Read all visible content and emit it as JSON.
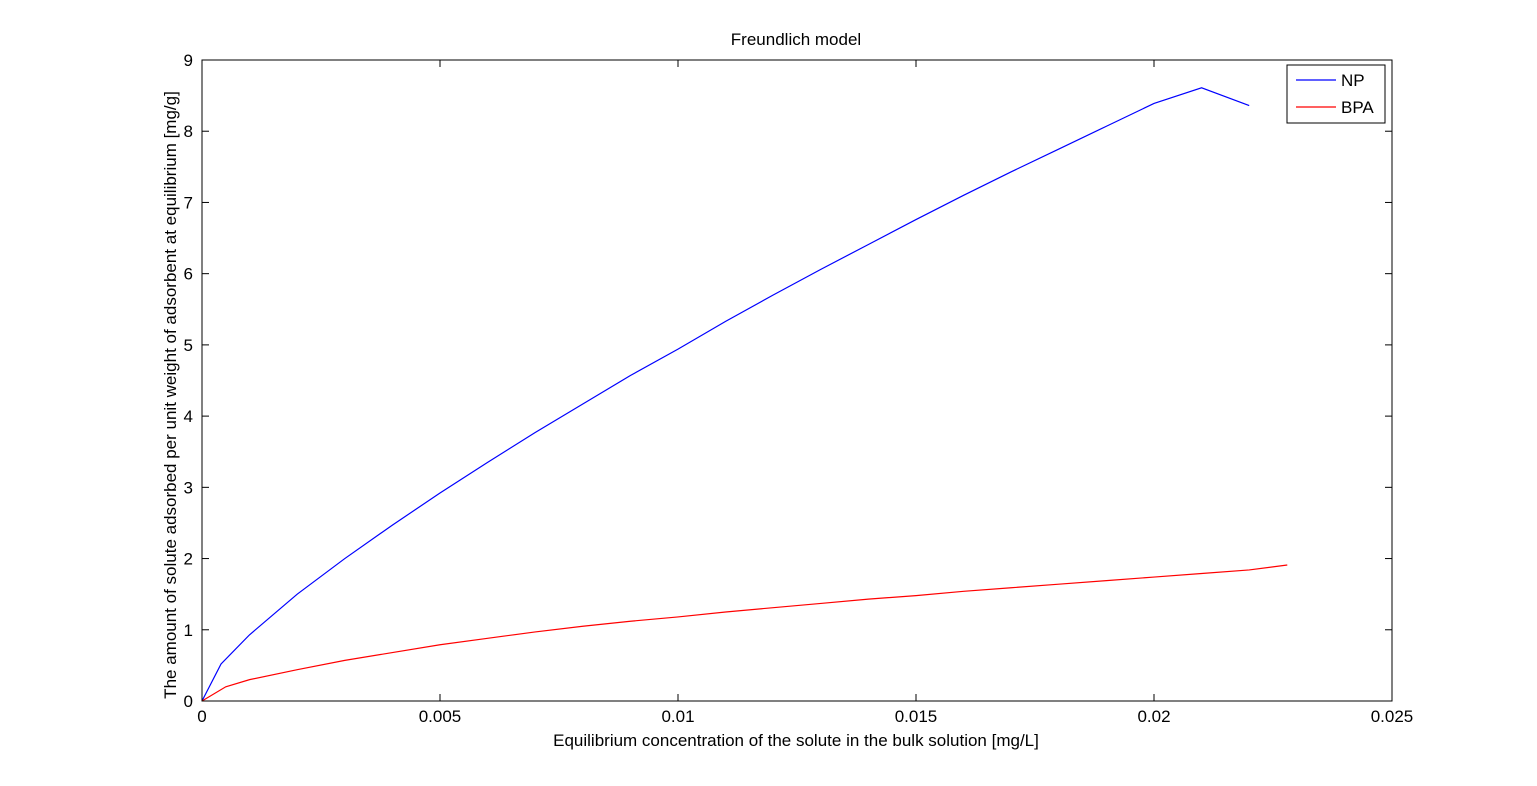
{
  "chart_data": {
    "type": "line",
    "title": "Freundlich model",
    "xlabel": "Equilibrium concentration of the solute in the bulk solution [mg/L]",
    "ylabel": "The amount of solute adsorbed per unit weight of adsorbent at equilibrium [mg/g]",
    "xlim": [
      0,
      0.025
    ],
    "ylim": [
      0,
      9
    ],
    "xticks": [
      0,
      0.005,
      0.01,
      0.015,
      0.02,
      0.025
    ],
    "xtick_labels": [
      "0",
      "0.005",
      "0.01",
      "0.015",
      "0.02",
      "0.025"
    ],
    "yticks": [
      0,
      1,
      2,
      3,
      4,
      5,
      6,
      7,
      8,
      9
    ],
    "ytick_labels": [
      "0",
      "1",
      "2",
      "3",
      "4",
      "5",
      "6",
      "7",
      "8",
      "9"
    ],
    "grid": false,
    "legend_position": "top-right",
    "series": [
      {
        "name": "NP",
        "color": "#0000ff",
        "points": [
          [
            0,
            0
          ],
          [
            0.0004,
            0.52
          ],
          [
            0.001,
            0.93
          ],
          [
            0.002,
            1.5
          ],
          [
            0.003,
            2.0
          ],
          [
            0.004,
            2.47
          ],
          [
            0.005,
            2.92
          ],
          [
            0.006,
            3.35
          ],
          [
            0.007,
            3.77
          ],
          [
            0.008,
            4.17
          ],
          [
            0.009,
            4.57
          ],
          [
            0.01,
            4.94
          ],
          [
            0.011,
            5.33
          ],
          [
            0.012,
            5.7
          ],
          [
            0.013,
            6.06
          ],
          [
            0.014,
            6.41
          ],
          [
            0.015,
            6.76
          ],
          [
            0.016,
            7.1
          ],
          [
            0.017,
            7.43
          ],
          [
            0.018,
            7.75
          ],
          [
            0.019,
            8.07
          ],
          [
            0.02,
            8.39
          ],
          [
            0.021,
            8.61
          ],
          [
            0.022,
            8.36
          ]
        ]
      },
      {
        "name": "BPA",
        "color": "#ff0000",
        "points": [
          [
            0,
            0
          ],
          [
            0.0005,
            0.2
          ],
          [
            0.001,
            0.3
          ],
          [
            0.002,
            0.44
          ],
          [
            0.003,
            0.57
          ],
          [
            0.004,
            0.68
          ],
          [
            0.005,
            0.79
          ],
          [
            0.006,
            0.88
          ],
          [
            0.007,
            0.97
          ],
          [
            0.008,
            1.05
          ],
          [
            0.009,
            1.12
          ],
          [
            0.01,
            1.18
          ],
          [
            0.011,
            1.25
          ],
          [
            0.012,
            1.31
          ],
          [
            0.013,
            1.37
          ],
          [
            0.014,
            1.43
          ],
          [
            0.015,
            1.48
          ],
          [
            0.016,
            1.54
          ],
          [
            0.017,
            1.59
          ],
          [
            0.018,
            1.64
          ],
          [
            0.019,
            1.69
          ],
          [
            0.02,
            1.74
          ],
          [
            0.021,
            1.79
          ],
          [
            0.022,
            1.84
          ],
          [
            0.0228,
            1.91
          ]
        ]
      }
    ]
  }
}
